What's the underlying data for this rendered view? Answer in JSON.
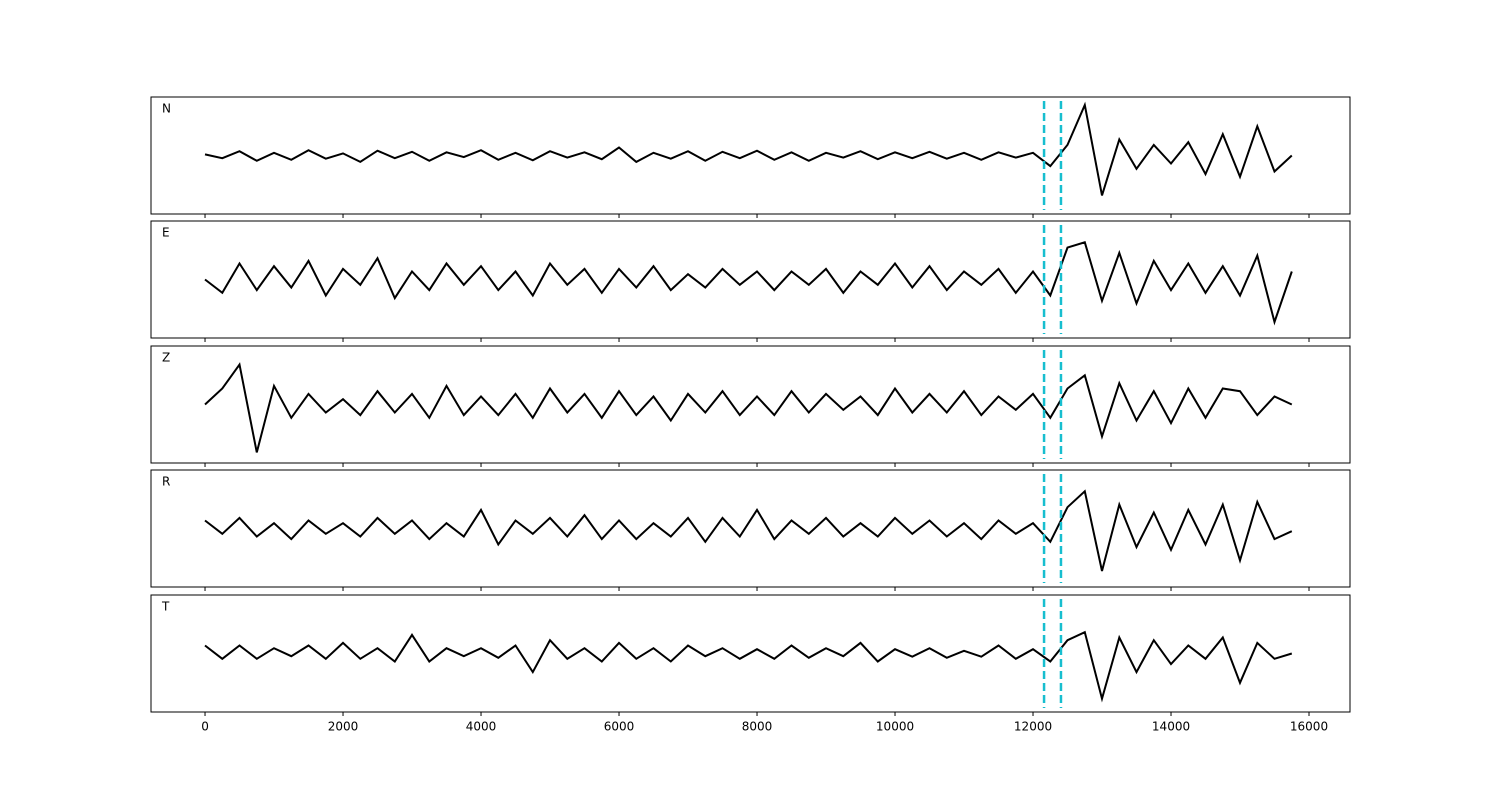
{
  "chart_data": {
    "type": "line",
    "layout": "stacked",
    "x": [
      0,
      250,
      500,
      750,
      1000,
      1250,
      1500,
      1750,
      2000,
      2250,
      2500,
      2750,
      3000,
      3250,
      3500,
      3750,
      4000,
      4250,
      4500,
      4750,
      5000,
      5250,
      5500,
      5750,
      6000,
      6250,
      6500,
      6750,
      7000,
      7250,
      7500,
      7750,
      8000,
      8250,
      8500,
      8750,
      9000,
      9250,
      9500,
      9750,
      10000,
      10250,
      10500,
      10750,
      11000,
      11250,
      11500,
      11750,
      12000,
      12250,
      12500,
      12750,
      13000,
      13250,
      13500,
      13750,
      14000,
      14250,
      14500,
      14750,
      15000,
      15250,
      15500,
      15750
    ],
    "xlim": [
      -783,
      16594
    ],
    "xticks": [
      0,
      2000,
      4000,
      6000,
      8000,
      10000,
      12000,
      14000,
      16000
    ],
    "ylim": [
      -1.1,
      1.1
    ],
    "series": [
      {
        "name": "N",
        "color": "#000000",
        "values": [
          0.02,
          -0.05,
          0.08,
          -0.1,
          0.05,
          -0.08,
          0.1,
          -0.06,
          0.04,
          -0.12,
          0.09,
          -0.05,
          0.07,
          -0.1,
          0.06,
          -0.03,
          0.1,
          -0.08,
          0.05,
          -0.09,
          0.08,
          -0.04,
          0.06,
          -0.07,
          0.15,
          -0.12,
          0.05,
          -0.06,
          0.08,
          -0.1,
          0.07,
          -0.05,
          0.09,
          -0.08,
          0.06,
          -0.1,
          0.05,
          -0.04,
          0.08,
          -0.07,
          0.06,
          -0.05,
          0.07,
          -0.06,
          0.05,
          -0.08,
          0.06,
          -0.04,
          0.05,
          -0.2,
          0.2,
          0.95,
          -0.75,
          0.3,
          -0.25,
          0.2,
          -0.15,
          0.25,
          -0.35,
          0.4,
          -0.4,
          0.55,
          -0.3,
          0.0
        ]
      },
      {
        "name": "E",
        "color": "#000000",
        "values": [
          0.0,
          -0.25,
          0.3,
          -0.2,
          0.25,
          -0.15,
          0.35,
          -0.3,
          0.2,
          -0.1,
          0.4,
          -0.35,
          0.15,
          -0.2,
          0.3,
          -0.1,
          0.25,
          -0.2,
          0.15,
          -0.3,
          0.3,
          -0.1,
          0.2,
          -0.25,
          0.2,
          -0.15,
          0.25,
          -0.2,
          0.1,
          -0.15,
          0.2,
          -0.1,
          0.15,
          -0.2,
          0.15,
          -0.1,
          0.2,
          -0.25,
          0.15,
          -0.1,
          0.3,
          -0.15,
          0.25,
          -0.2,
          0.15,
          -0.1,
          0.2,
          -0.25,
          0.15,
          -0.3,
          0.6,
          0.7,
          -0.4,
          0.5,
          -0.45,
          0.35,
          -0.2,
          0.3,
          -0.25,
          0.25,
          -0.3,
          0.45,
          -0.8,
          0.15
        ]
      },
      {
        "name": "Z",
        "color": "#000000",
        "values": [
          0.0,
          0.3,
          0.75,
          -0.9,
          0.35,
          -0.25,
          0.2,
          -0.15,
          0.1,
          -0.2,
          0.25,
          -0.15,
          0.2,
          -0.25,
          0.35,
          -0.2,
          0.15,
          -0.2,
          0.2,
          -0.25,
          0.3,
          -0.15,
          0.2,
          -0.25,
          0.25,
          -0.2,
          0.15,
          -0.3,
          0.2,
          -0.15,
          0.25,
          -0.2,
          0.15,
          -0.2,
          0.25,
          -0.15,
          0.2,
          -0.1,
          0.15,
          -0.2,
          0.3,
          -0.15,
          0.2,
          -0.15,
          0.25,
          -0.2,
          0.15,
          -0.1,
          0.2,
          -0.25,
          0.3,
          0.55,
          -0.6,
          0.4,
          -0.3,
          0.25,
          -0.35,
          0.3,
          -0.25,
          0.3,
          0.25,
          -0.2,
          0.15,
          0.0
        ]
      },
      {
        "name": "R",
        "color": "#000000",
        "values": [
          0.15,
          -0.1,
          0.2,
          -0.15,
          0.1,
          -0.2,
          0.15,
          -0.1,
          0.1,
          -0.15,
          0.2,
          -0.1,
          0.15,
          -0.2,
          0.1,
          -0.15,
          0.35,
          -0.3,
          0.15,
          -0.1,
          0.2,
          -0.15,
          0.25,
          -0.2,
          0.15,
          -0.2,
          0.1,
          -0.15,
          0.2,
          -0.25,
          0.2,
          -0.15,
          0.35,
          -0.2,
          0.15,
          -0.1,
          0.2,
          -0.15,
          0.1,
          -0.15,
          0.2,
          -0.1,
          0.15,
          -0.15,
          0.1,
          -0.2,
          0.15,
          -0.1,
          0.1,
          -0.25,
          0.4,
          0.7,
          -0.8,
          0.45,
          -0.35,
          0.3,
          -0.4,
          0.35,
          -0.3,
          0.45,
          -0.6,
          0.5,
          -0.2,
          -0.05
        ]
      },
      {
        "name": "T",
        "color": "#000000",
        "values": [
          0.15,
          -0.1,
          0.15,
          -0.1,
          0.1,
          -0.05,
          0.15,
          -0.1,
          0.2,
          -0.1,
          0.1,
          -0.15,
          0.35,
          -0.15,
          0.1,
          -0.05,
          0.1,
          -0.08,
          0.15,
          -0.35,
          0.25,
          -0.1,
          0.1,
          -0.15,
          0.2,
          -0.1,
          0.1,
          -0.15,
          0.15,
          -0.05,
          0.1,
          -0.1,
          0.08,
          -0.1,
          0.15,
          -0.08,
          0.1,
          -0.05,
          0.2,
          -0.15,
          0.08,
          -0.06,
          0.1,
          -0.08,
          0.05,
          -0.06,
          0.15,
          -0.1,
          0.08,
          -0.15,
          0.25,
          0.4,
          -0.85,
          0.3,
          -0.35,
          0.25,
          -0.2,
          0.15,
          -0.1,
          0.3,
          -0.55,
          0.2,
          -0.1,
          0.0
        ]
      }
    ],
    "vlines": {
      "values": [
        12160,
        12405
      ],
      "color": "#17becf"
    }
  }
}
